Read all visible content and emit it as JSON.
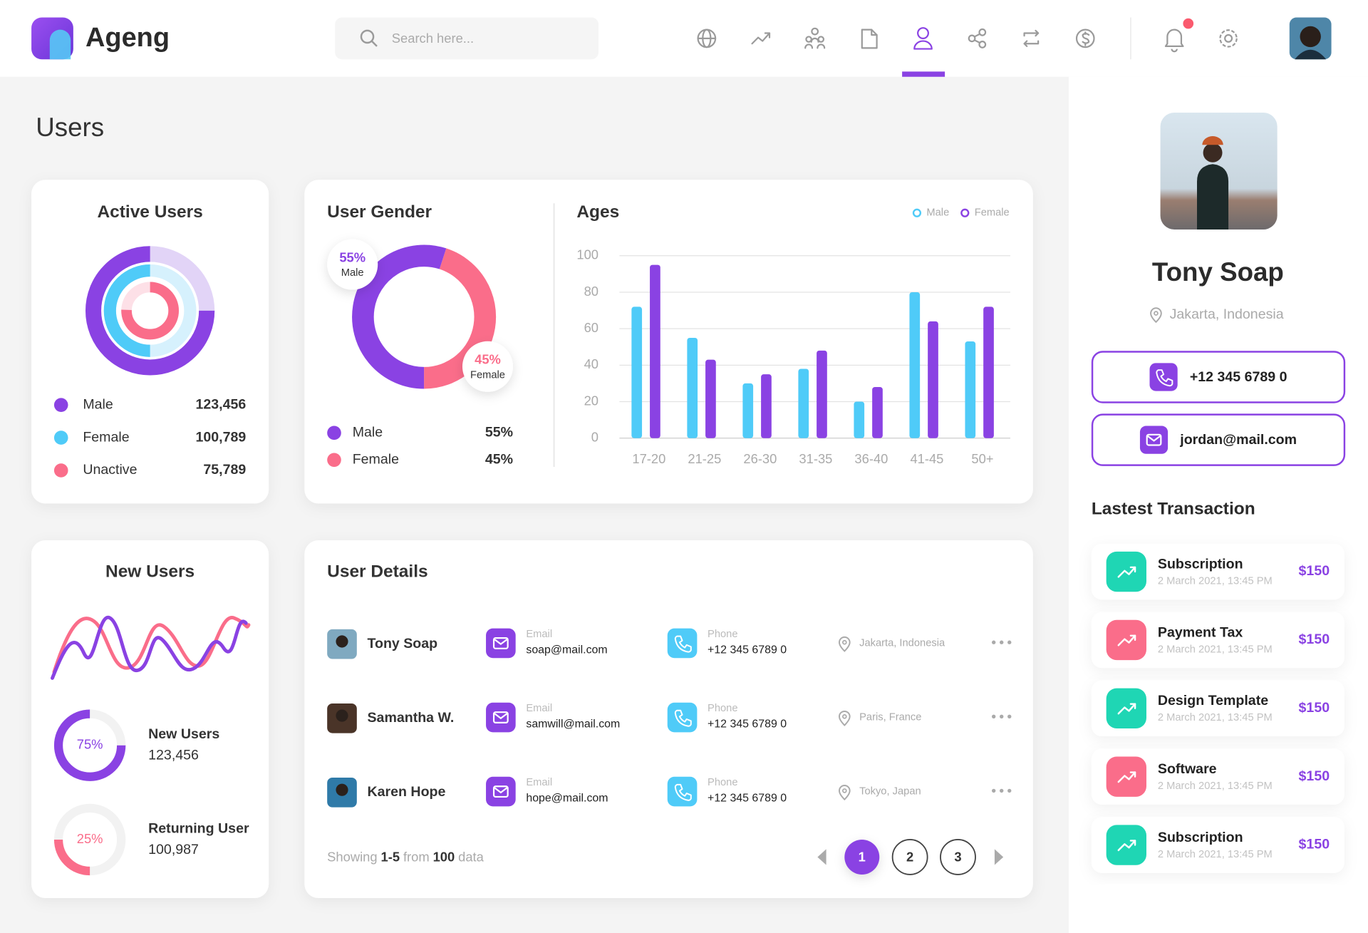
{
  "header": {
    "brand": "Ageng",
    "search_placeholder": "Search here..."
  },
  "page_title": "Users",
  "active_users": {
    "title": "Active Users",
    "items": [
      {
        "name": "Male",
        "value": "123,456"
      },
      {
        "name": "Female",
        "value": "100,789"
      },
      {
        "name": "Unactive",
        "value": "75,789"
      }
    ]
  },
  "user_gender": {
    "title": "User Gender",
    "items": [
      {
        "name": "Male",
        "value": 55,
        "label": "55%"
      },
      {
        "name": "Female",
        "value": 45,
        "label": "45%"
      }
    ]
  },
  "chart_data": {
    "type": "bar",
    "title": "Ages",
    "categories": [
      "17-20",
      "21-25",
      "26-30",
      "31-35",
      "36-40",
      "41-45",
      "50+"
    ],
    "series": [
      {
        "name": "Male",
        "color": "#4fcbf8",
        "values": [
          72,
          55,
          30,
          38,
          20,
          80,
          53
        ]
      },
      {
        "name": "Female",
        "color": "#8a42e3",
        "values": [
          95,
          43,
          35,
          48,
          28,
          64,
          72
        ]
      }
    ],
    "ylim": [
      0,
      100
    ],
    "yticks": [
      0,
      20,
      40,
      60,
      80,
      100
    ],
    "grid": true,
    "legend": "top-right"
  },
  "new_users": {
    "title": "New Users",
    "items": [
      {
        "name": "New Users",
        "value": "123,456",
        "percent": 75,
        "percent_label": "75%"
      },
      {
        "name": "Returning User",
        "value": "100,987",
        "percent": 25,
        "percent_label": "25%"
      }
    ]
  },
  "user_details": {
    "title": "User Details",
    "email_label": "Email",
    "phone_label": "Phone",
    "rows": [
      {
        "name": "Tony Soap",
        "email": "soap@mail.com",
        "phone": "+12 345 6789 0",
        "location": "Jakarta, Indonesia"
      },
      {
        "name": "Samantha W.",
        "email": "samwill@mail.com",
        "phone": "+12 345 6789 0",
        "location": "Paris, France"
      },
      {
        "name": "Karen Hope",
        "email": "hope@mail.com",
        "phone": "+12 345 6789 0",
        "location": "Tokyo, Japan"
      }
    ],
    "footer": {
      "showing": "Showing",
      "range": "1-5",
      "from": "from",
      "total": "100",
      "data": "data"
    },
    "pages": [
      "1",
      "2",
      "3"
    ]
  },
  "profile": {
    "name": "Tony Soap",
    "location": "Jakarta, Indonesia",
    "phone": "+12 345 6789 0",
    "email": "jordan@mail.com"
  },
  "transactions": {
    "title": "Lastest Transaction",
    "items": [
      {
        "name": "Subscription",
        "date": "2 March 2021, 13:45 PM",
        "amount": "$150"
      },
      {
        "name": "Payment Tax",
        "date": "2 March 2021, 13:45 PM",
        "amount": "$150"
      },
      {
        "name": "Design Template",
        "date": "2 March 2021, 13:45 PM",
        "amount": "$150"
      },
      {
        "name": "Software",
        "date": "2 March 2021, 13:45 PM",
        "amount": "$150"
      },
      {
        "name": "Subscription",
        "date": "2 March 2021, 13:45 PM",
        "amount": "$150"
      }
    ]
  }
}
